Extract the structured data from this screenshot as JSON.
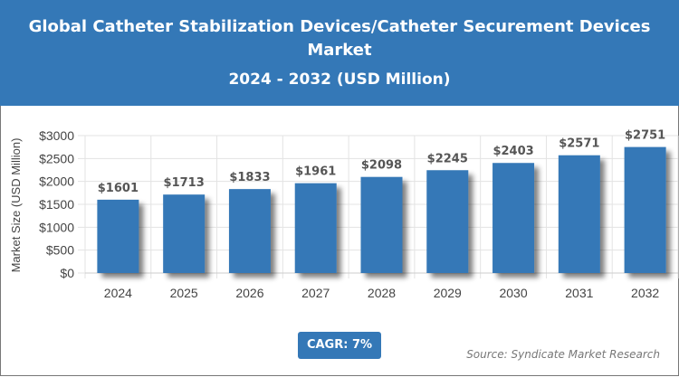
{
  "chart_data": {
    "type": "bar",
    "title": "Global Catheter Stabilization Devices/Catheter Securement Devices Market",
    "subtitle": "2024 - 2032 (USD Million)",
    "xlabel": "",
    "ylabel": "Market Size (USD Million)",
    "categories": [
      "2024",
      "2025",
      "2026",
      "2027",
      "2028",
      "2029",
      "2030",
      "2031",
      "2032"
    ],
    "values": [
      1601,
      1713,
      1833,
      1961,
      2098,
      2245,
      2403,
      2571,
      2751
    ],
    "data_labels": [
      "$1601",
      "$1713",
      "$1833",
      "$1961",
      "$2098",
      "$2245",
      "$2403",
      "$2571",
      "$2751"
    ],
    "ylim": [
      0,
      3000
    ],
    "yticks": [
      0,
      500,
      1000,
      1500,
      2000,
      2500,
      3000
    ],
    "ytick_labels": [
      "$0",
      "$500",
      "$1000",
      "$1500",
      "$2000",
      "$2500",
      "$3000"
    ],
    "grid": true,
    "bar_color": "#3478b7"
  },
  "cagr_label": "CAGR: 7%",
  "source": "Source: Syndicate Market Research"
}
